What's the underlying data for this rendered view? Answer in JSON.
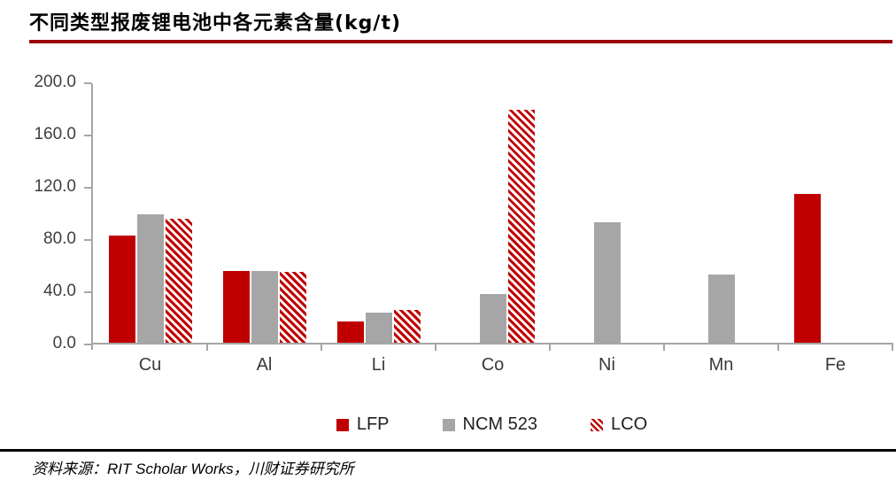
{
  "header": {
    "title": "不同类型报废锂电池中各元素含量(kg/t)"
  },
  "chart_data": {
    "type": "bar",
    "title": "不同类型报废锂电池中各元素含量(kg/t)",
    "categories": [
      "Cu",
      "Al",
      "Li",
      "Co",
      "Ni",
      "Mn",
      "Fe"
    ],
    "series": [
      {
        "name": "LFP",
        "style": "solid",
        "color": "#c00000",
        "values": [
          82,
          55,
          16,
          0,
          0,
          0,
          114
        ]
      },
      {
        "name": "NCM 523",
        "style": "solid",
        "color": "#a6a6a6",
        "values": [
          98,
          55,
          23,
          37,
          92,
          52,
          0
        ]
      },
      {
        "name": "LCO",
        "style": "hatched",
        "color": "#c00000",
        "values": [
          95,
          54,
          25,
          178,
          0,
          0,
          0
        ]
      }
    ],
    "ylim": [
      0,
      200
    ],
    "ytick_step": 40,
    "ytick_labels": [
      "0.0",
      "40.0",
      "80.0",
      "120.0",
      "160.0",
      "200.0"
    ],
    "grid": false,
    "legend_position": "bottom"
  },
  "colors": {
    "bar_red": "#c00000",
    "bar_gray": "#a6a6a6",
    "hatch_background": "#ffffff",
    "title_rule": "#990000",
    "axis_line": "#a6a6a6",
    "tick_label": "#3f3f3f",
    "footer_rule": "#000000"
  },
  "footer": {
    "source": "资料来源：RIT Scholar Works，川财证券研究所"
  }
}
